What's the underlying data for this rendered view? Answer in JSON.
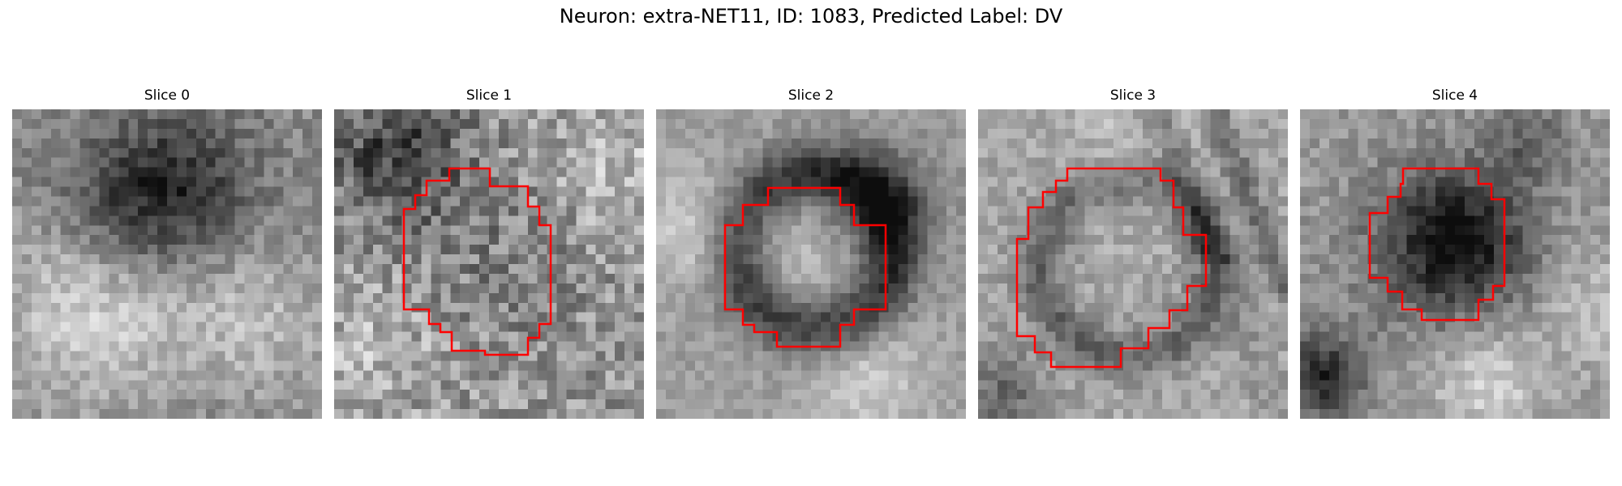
{
  "figure": {
    "title": "Neuron: extra-NET11, ID: 1083, Predicted Label: DV"
  },
  "colors": {
    "background": "#ffffff",
    "contour": "#ff0000"
  },
  "panels": [
    {
      "title": "Slice 0",
      "has_contour": false
    },
    {
      "title": "Slice 1",
      "has_contour": true
    },
    {
      "title": "Slice 2",
      "has_contour": true
    },
    {
      "title": "Slice 3",
      "has_contour": true
    },
    {
      "title": "Slice 4",
      "has_contour": true
    }
  ]
}
